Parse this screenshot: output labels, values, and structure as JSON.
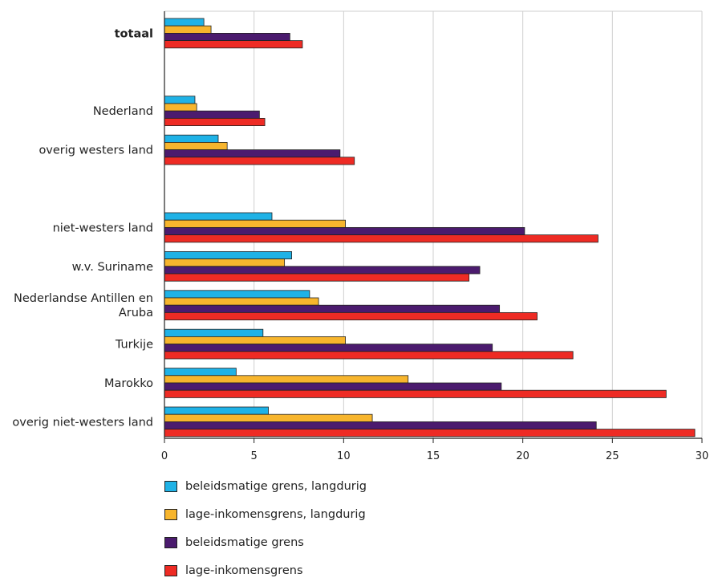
{
  "chart_data": {
    "type": "bar",
    "orientation": "horizontal",
    "groups": [
      {
        "label": "totaal",
        "bold": true,
        "values": [
          2.2,
          2.6,
          7.0,
          7.7
        ]
      },
      {
        "label": "",
        "values": null
      },
      {
        "label": "Nederland",
        "values": [
          1.7,
          1.8,
          5.3,
          5.6
        ]
      },
      {
        "label": "overig westers land",
        "values": [
          3.0,
          3.5,
          9.8,
          10.6
        ]
      },
      {
        "label": "",
        "values": null
      },
      {
        "label": "niet-westers land",
        "values": [
          6.0,
          10.1,
          20.1,
          24.2
        ]
      },
      {
        "label": "w.v.    Suriname",
        "values": [
          7.1,
          6.7,
          17.6,
          17.0
        ]
      },
      {
        "label": "Nederlandse Antillen en\nAruba",
        "values": [
          8.1,
          8.6,
          18.7,
          20.8
        ]
      },
      {
        "label": "Turkije",
        "values": [
          5.5,
          10.1,
          18.3,
          22.8
        ]
      },
      {
        "label": "Marokko",
        "values": [
          4.0,
          13.6,
          18.8,
          28.0
        ]
      },
      {
        "label": "overig niet-westers land",
        "values": [
          5.8,
          11.6,
          24.1,
          29.6
        ]
      }
    ],
    "series": [
      {
        "name": "beleidsmatige grens, langdurig",
        "color": "#1fb2e6"
      },
      {
        "name": "lage-inkomensgrens, langdurig",
        "color": "#f7b52d"
      },
      {
        "name": "beleidsmatige grens",
        "color": "#4b1b6e"
      },
      {
        "name": "lage-inkomensgrens",
        "color": "#ee2b24"
      }
    ],
    "xlim": [
      0,
      30
    ],
    "xticks": [
      0,
      5,
      10,
      15,
      20,
      25,
      30
    ],
    "grid": true,
    "legend_position": "bottom-left"
  }
}
